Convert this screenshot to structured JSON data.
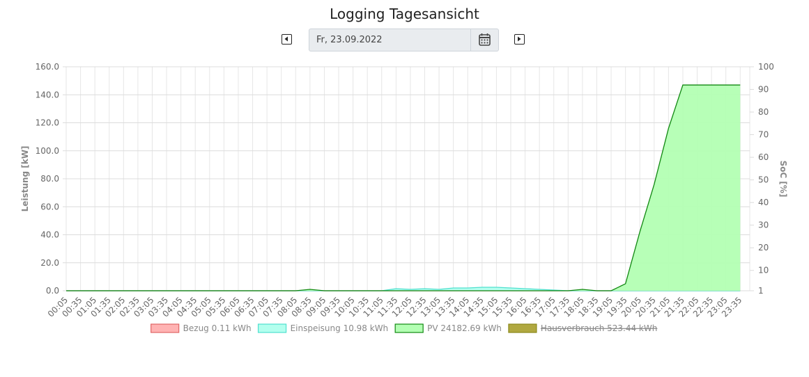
{
  "header": {
    "title": "Logging Tagesansicht",
    "date": "Fr, 23.09.2022"
  },
  "chart_data": {
    "type": "area",
    "categories": [
      "00:05",
      "00:35",
      "01:05",
      "01:35",
      "02:05",
      "02:35",
      "03:05",
      "03:35",
      "04:05",
      "04:35",
      "05:05",
      "05:35",
      "06:05",
      "06:35",
      "07:05",
      "07:35",
      "08:05",
      "08:35",
      "09:05",
      "09:35",
      "10:05",
      "10:35",
      "11:05",
      "11:35",
      "12:05",
      "12:35",
      "13:05",
      "13:35",
      "14:05",
      "14:35",
      "15:05",
      "15:35",
      "16:05",
      "16:35",
      "17:05",
      "17:35",
      "18:05",
      "18:35",
      "19:05",
      "19:35",
      "20:05",
      "20:35",
      "21:05",
      "21:35",
      "22:05",
      "22:35",
      "23:05",
      "23:35"
    ],
    "y_label": "Leistung [kW]",
    "y2_label": "SoC [%]",
    "ylim": [
      0,
      160
    ],
    "yticks": [
      {
        "value": 0,
        "label": "0.0"
      },
      {
        "value": 20,
        "label": "20.0"
      },
      {
        "value": 40,
        "label": "40.0"
      },
      {
        "value": 60,
        "label": "60.0"
      },
      {
        "value": 80,
        "label": "80.0"
      },
      {
        "value": 100,
        "label": "100.0"
      },
      {
        "value": 120,
        "label": "120.0"
      },
      {
        "value": 140,
        "label": "140.0"
      },
      {
        "value": 160,
        "label": "160.0"
      }
    ],
    "y2lim": [
      1,
      100
    ],
    "y2ticks": [
      1,
      10,
      20,
      30,
      40,
      50,
      60,
      70,
      80,
      90,
      100
    ],
    "grid": true,
    "series": [
      {
        "name": "Bezug 0.11 kWh",
        "color": "#ffb3b3",
        "border": "#e06666",
        "hidden": false,
        "values": [
          0,
          0,
          0,
          0,
          0,
          0,
          0,
          0,
          0,
          0,
          0,
          0,
          0,
          0,
          0,
          0,
          0,
          0,
          0,
          0,
          0,
          0,
          0,
          0,
          0,
          0,
          0,
          0,
          0,
          0,
          0,
          0,
          0,
          0,
          0,
          0,
          0,
          0,
          0,
          0,
          0,
          0,
          0,
          0,
          0,
          0,
          0,
          0
        ]
      },
      {
        "name": "Einspeisung 10.98 kWh",
        "color": "#b3ffee",
        "border": "#4fe0cf",
        "hidden": false,
        "values": [
          0,
          0,
          0,
          0,
          0,
          0,
          0,
          0,
          0,
          0,
          0,
          0,
          0,
          0,
          0,
          0,
          0,
          0,
          0,
          0,
          0,
          0,
          0,
          1.5,
          1,
          1.5,
          1,
          2,
          2,
          2.5,
          2.5,
          2,
          1.5,
          1,
          0.5,
          0,
          0,
          0,
          0,
          0,
          0,
          0,
          0,
          0,
          0,
          0,
          0,
          0
        ]
      },
      {
        "name": "PV 24182.69 kWh",
        "color": "#b3ffb3",
        "border": "#118811",
        "hidden": false,
        "values": [
          0,
          0,
          0,
          0,
          0,
          0,
          0,
          0,
          0,
          0,
          0,
          0,
          0,
          0,
          0,
          0,
          0,
          1,
          0,
          0,
          0,
          0,
          0,
          0,
          0,
          0,
          0,
          0,
          0,
          0,
          0,
          0,
          0,
          0,
          0,
          0,
          1,
          0,
          0,
          5,
          42,
          76,
          116,
          147,
          147,
          147,
          147,
          147
        ]
      },
      {
        "name": "Hausverbrauch 523.44 kWh",
        "color": "#b0a840",
        "border": "#8c8a1c",
        "hidden": true,
        "values": [
          0,
          0,
          0,
          0,
          0,
          0,
          0,
          0,
          0,
          0,
          0,
          0,
          0,
          0,
          0,
          0,
          0,
          0,
          0,
          0,
          0,
          0,
          0,
          0,
          0,
          0,
          0,
          0,
          0,
          0,
          0,
          0,
          0,
          0,
          0,
          0,
          0,
          0,
          0,
          0,
          0,
          0,
          0,
          0,
          0,
          0,
          0,
          0
        ]
      }
    ]
  }
}
